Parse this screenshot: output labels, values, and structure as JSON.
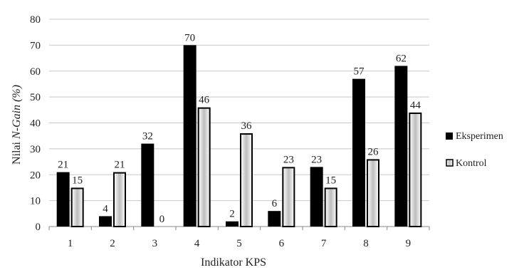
{
  "chart_data": {
    "type": "bar",
    "categories": [
      "1",
      "2",
      "3",
      "4",
      "5",
      "6",
      "7",
      "8",
      "9"
    ],
    "series": [
      {
        "name": "Eksperimen",
        "values": [
          21,
          4,
          32,
          70,
          2,
          6,
          23,
          57,
          62
        ],
        "style": "solid-black"
      },
      {
        "name": "Kontrol",
        "values": [
          15,
          21,
          0,
          46,
          36,
          23,
          15,
          26,
          44
        ],
        "style": "outlined-gradient"
      }
    ],
    "data_labels": {
      "Eksperimen": [
        "21",
        "4",
        "32",
        "70",
        "2",
        "6",
        "23",
        "57",
        "62"
      ],
      "Kontrol": [
        "15",
        "21",
        "0",
        "46",
        "36",
        "23",
        "15",
        "26",
        "44"
      ]
    },
    "yticks": [
      "0",
      "10",
      "20",
      "30",
      "40",
      "50",
      "60",
      "70",
      "80"
    ],
    "xlabel": "Indikator KPS",
    "ylabel_parts": [
      "Nilai ",
      "N-Gain",
      " (%)"
    ],
    "ylim": [
      0,
      80
    ],
    "grid": true,
    "legend_position": "right",
    "colors": {
      "eksperimen": "#000000",
      "kontrol_outline": "#000000",
      "kontrol_fill": "#bdbdbd",
      "grid": "#c8c8c8"
    }
  }
}
